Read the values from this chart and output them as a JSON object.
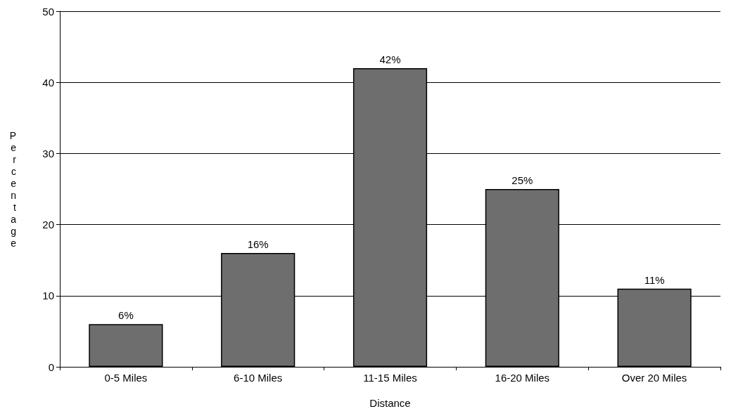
{
  "chart_data": {
    "type": "bar",
    "xlabel": "Distance",
    "ylabel": "Percentage",
    "categories": [
      "0-5 Miles",
      "6-10 Miles",
      "11-15 Miles",
      "16-20 Miles",
      "Over 20 Miles"
    ],
    "values": [
      6,
      16,
      42,
      25,
      11
    ],
    "value_labels": [
      "6%",
      "16%",
      "42%",
      "25%",
      "11%"
    ],
    "color": "#6e6e6e",
    "ylim": [
      0,
      50
    ],
    "yticks": [
      0,
      10,
      20,
      30,
      40,
      50
    ],
    "grid": "y"
  }
}
